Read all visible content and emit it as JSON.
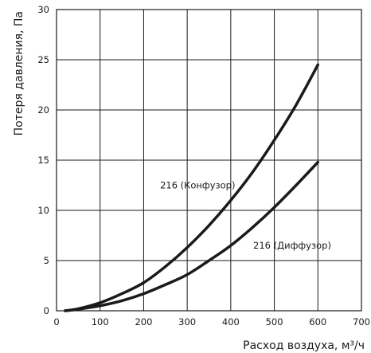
{
  "chart_data": {
    "type": "line",
    "xlabel": "Расход воздуха, м³/ч",
    "ylabel": "Потеря давления, Па",
    "xlim": [
      0,
      700
    ],
    "ylim": [
      0,
      30
    ],
    "x_ticks": [
      0,
      100,
      200,
      300,
      400,
      500,
      600,
      700
    ],
    "y_ticks": [
      0,
      5,
      10,
      15,
      20,
      25,
      30
    ],
    "grid": true,
    "series": [
      {
        "name": "216 (Конфузор)",
        "x": [
          20,
          50,
          100,
          150,
          200,
          250,
          300,
          350,
          400,
          450,
          500,
          550,
          600
        ],
        "y": [
          0.0,
          0.2,
          0.8,
          1.7,
          2.8,
          4.4,
          6.3,
          8.5,
          11.0,
          13.8,
          17.0,
          20.5,
          24.5
        ]
      },
      {
        "name": "216 (Диффузор)",
        "x": [
          20,
          50,
          100,
          150,
          200,
          250,
          300,
          350,
          400,
          450,
          500,
          550,
          600
        ],
        "y": [
          0.0,
          0.15,
          0.5,
          1.0,
          1.7,
          2.6,
          3.6,
          5.0,
          6.5,
          8.3,
          10.3,
          12.5,
          14.8
        ]
      }
    ]
  }
}
